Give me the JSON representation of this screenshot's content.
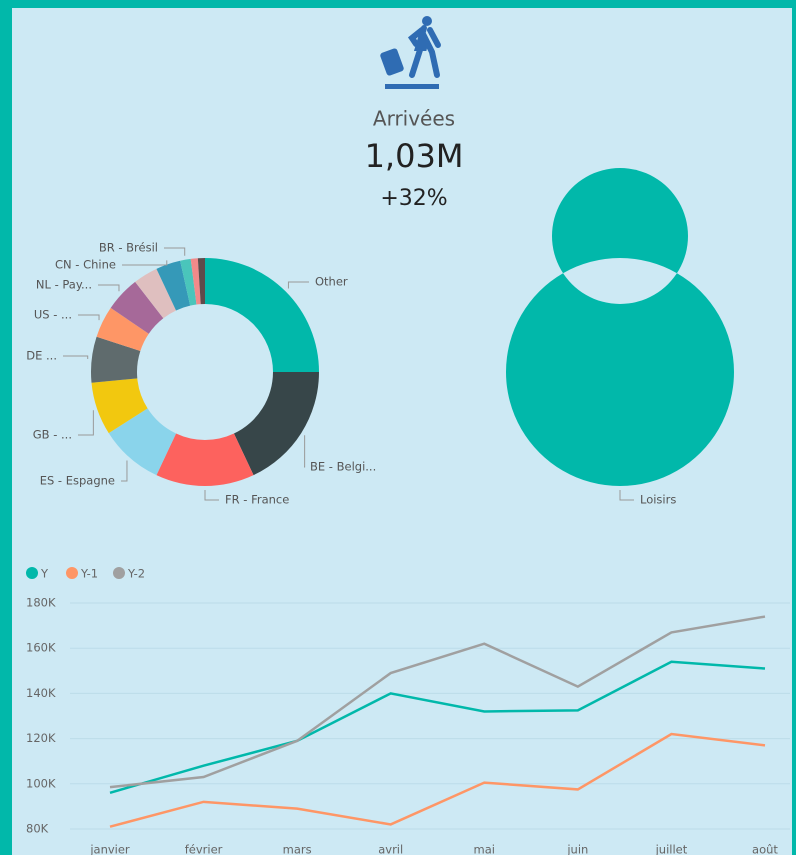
{
  "kpi": {
    "label": "Arrivées",
    "value": "1,03M",
    "change": "+32%"
  },
  "chart_data": [
    {
      "type": "donut",
      "categories": [
        "Other",
        "BE - Belgi...",
        "FR - France",
        "ES - Espagne",
        "GB - ...",
        "DE ...",
        "US - ...",
        "NL - Pay...",
        null,
        "CN - Chine",
        "BR - Brésil",
        null,
        null
      ],
      "values": [
        25,
        18,
        14,
        9,
        7.5,
        6.5,
        4.5,
        5,
        3.5,
        3.5,
        1.5,
        1,
        1
      ],
      "colors": [
        "#01b8aa",
        "#374649",
        "#fd625e",
        "#8ad4eb",
        "#f2c80f",
        "#5f6b6d",
        "#fe9666",
        "#a66999",
        "#dfbfbf",
        "#3599b8",
        "#4ac5bb",
        "#f28a8a",
        "#5f4b4b"
      ]
    },
    {
      "type": "donut",
      "categories": [
        "Loisirs"
      ],
      "values": [
        100
      ],
      "colors": [
        "#01b8aa"
      ]
    },
    {
      "type": "line",
      "categories": [
        "janvier",
        "février",
        "mars",
        "avril",
        "mai",
        "juin",
        "juillet",
        "août"
      ],
      "series": [
        {
          "name": "Y",
          "color": "#01b8aa",
          "values": [
            96000,
            108000,
            119000,
            140000,
            132000,
            132500,
            154000,
            151000
          ]
        },
        {
          "name": "Y-1",
          "color": "#fe9666",
          "values": [
            81000,
            92000,
            89000,
            82000,
            100500,
            97500,
            122000,
            117000
          ]
        },
        {
          "name": "Y-2",
          "color": "#a0a0a0",
          "values": [
            98500,
            103000,
            119000,
            149000,
            162000,
            143000,
            167000,
            174000
          ]
        }
      ],
      "ylim": [
        76000,
        182000
      ],
      "yticks": [
        {
          "value": 80000,
          "label": "80K"
        },
        {
          "value": 100000,
          "label": "100K"
        },
        {
          "value": 120000,
          "label": "120K"
        },
        {
          "value": 140000,
          "label": "140K"
        },
        {
          "value": 160000,
          "label": "160K"
        },
        {
          "value": 180000,
          "label": "180K"
        }
      ],
      "grid": true,
      "legend": "top-left"
    }
  ]
}
